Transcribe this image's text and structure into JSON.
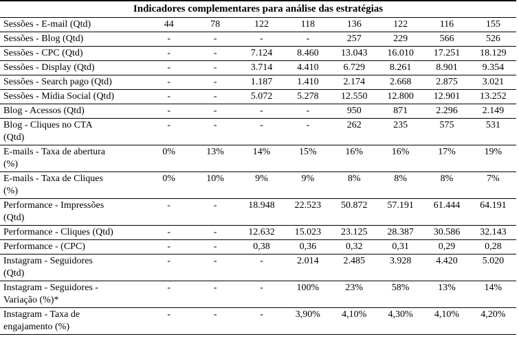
{
  "meta": {
    "text_color": "#000000",
    "background_color": "#ffffff",
    "border_color": "#000000"
  },
  "title": "Indicadores complementares para análise das estratégias",
  "table": {
    "num_value_columns": 8,
    "rows": [
      {
        "label": "Sessões - E-mail (Qtd)",
        "values": [
          "44",
          "78",
          "122",
          "118",
          "136",
          "122",
          "116",
          "155"
        ]
      },
      {
        "label": "Sessões - Blog (Qtd)",
        "values": [
          "-",
          "-",
          "-",
          "-",
          "257",
          "229",
          "566",
          "526"
        ]
      },
      {
        "label": "Sessões - CPC (Qtd)",
        "values": [
          "-",
          "-",
          "7.124",
          "8.460",
          "13.043",
          "16.010",
          "17.251",
          "18.129"
        ]
      },
      {
        "label": "Sessões - Display (Qtd)",
        "values": [
          "-",
          "-",
          "3.714",
          "4.410",
          "6.729",
          "8.261",
          "8.901",
          "9.354"
        ]
      },
      {
        "label": "Sessões - Search pago (Qtd)",
        "values": [
          "-",
          "-",
          "1.187",
          "1.410",
          "2.174",
          "2.668",
          "2.875",
          "3.021"
        ]
      },
      {
        "label": "Sessões - Mídia Social (Qtd)",
        "values": [
          "-",
          "-",
          "5.072",
          "5.278",
          "12.550",
          "12.800",
          "12.901",
          "13.252"
        ]
      },
      {
        "label": "Blog - Acessos (Qtd)",
        "values": [
          "-",
          "-",
          "-",
          "-",
          "950",
          "871",
          "2.296",
          "2.149"
        ]
      },
      {
        "label": "Blog - Cliques no CTA\n(Qtd)",
        "values": [
          "-",
          "-",
          "-",
          "-",
          "262",
          "235",
          "575",
          "531"
        ]
      },
      {
        "label": "E-mails - Taxa de abertura\n(%)",
        "values": [
          "0%",
          "13%",
          "14%",
          "15%",
          "16%",
          "16%",
          "17%",
          "19%"
        ]
      },
      {
        "label": "E-mails - Taxa de Cliques\n(%)",
        "values": [
          "0%",
          "10%",
          "9%",
          "9%",
          "8%",
          "8%",
          "8%",
          "7%"
        ]
      },
      {
        "label": "Performance - Impressões\n(Qtd)",
        "values": [
          "-",
          "-",
          "18.948",
          "22.523",
          "50.872",
          "57.191",
          "61.444",
          "64.191"
        ]
      },
      {
        "label": "Performance - Cliques (Qtd)",
        "values": [
          "-",
          "-",
          "12.632",
          "15.023",
          "23.125",
          "28.387",
          "30.586",
          "32.143"
        ]
      },
      {
        "label": "Performance - (CPC)",
        "values": [
          "-",
          "-",
          "0,38",
          "0,36",
          "0,32",
          "0,31",
          "0,29",
          "0,28"
        ]
      },
      {
        "label": "Instagram - Seguidores\n(Qtd)",
        "values": [
          "-",
          "-",
          "-",
          "2.014",
          "2.485",
          "3.928",
          "4.420",
          "5.020"
        ]
      },
      {
        "label": "Instagram - Seguidores -\nVariação (%)*",
        "values": [
          "-",
          "-",
          "-",
          "100%",
          "23%",
          "58%",
          "13%",
          "14%"
        ]
      },
      {
        "label": "Instagram - Taxa de\nengajamento (%)",
        "values": [
          "-",
          "-",
          "-",
          "3,90%",
          "4,10%",
          "4,30%",
          "4,10%",
          "4,20%"
        ]
      }
    ]
  }
}
